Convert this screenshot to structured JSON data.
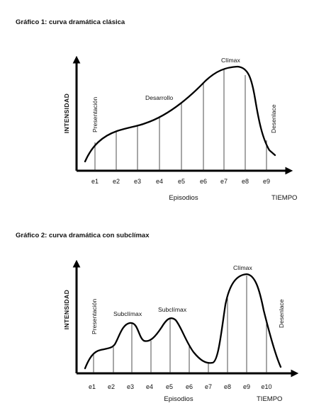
{
  "figures": [
    {
      "title": "Gráfico 1: curva dramática clásica",
      "y_axis_label": "INTENSIDAD",
      "x_axis_label": "Episodios",
      "x_axis_end_label": "TIEMPO",
      "episodes": [
        "e1",
        "e2",
        "e3",
        "e4",
        "e5",
        "e6",
        "e7",
        "e8",
        "e9"
      ],
      "annotations": {
        "presentacion": "Presentación",
        "desarrollo": "Desarrollo",
        "climax": "Clímax",
        "desenlace": "Desenlace"
      }
    },
    {
      "title": "Gráfico 2: curva dramática con subclímax",
      "y_axis_label": "INTENSIDAD",
      "x_axis_label": "Episodios",
      "x_axis_end_label": "TIEMPO",
      "episodes": [
        "e1",
        "e2",
        "e3",
        "e4",
        "e5",
        "e6",
        "e7",
        "e8",
        "e9",
        "e10"
      ],
      "annotations": {
        "presentacion": "Presentación",
        "subclimax_1": "Subclímax",
        "subclimax_2": "Subclímax",
        "climax": "Clímax",
        "desenlace": "Desenlace"
      }
    }
  ]
}
